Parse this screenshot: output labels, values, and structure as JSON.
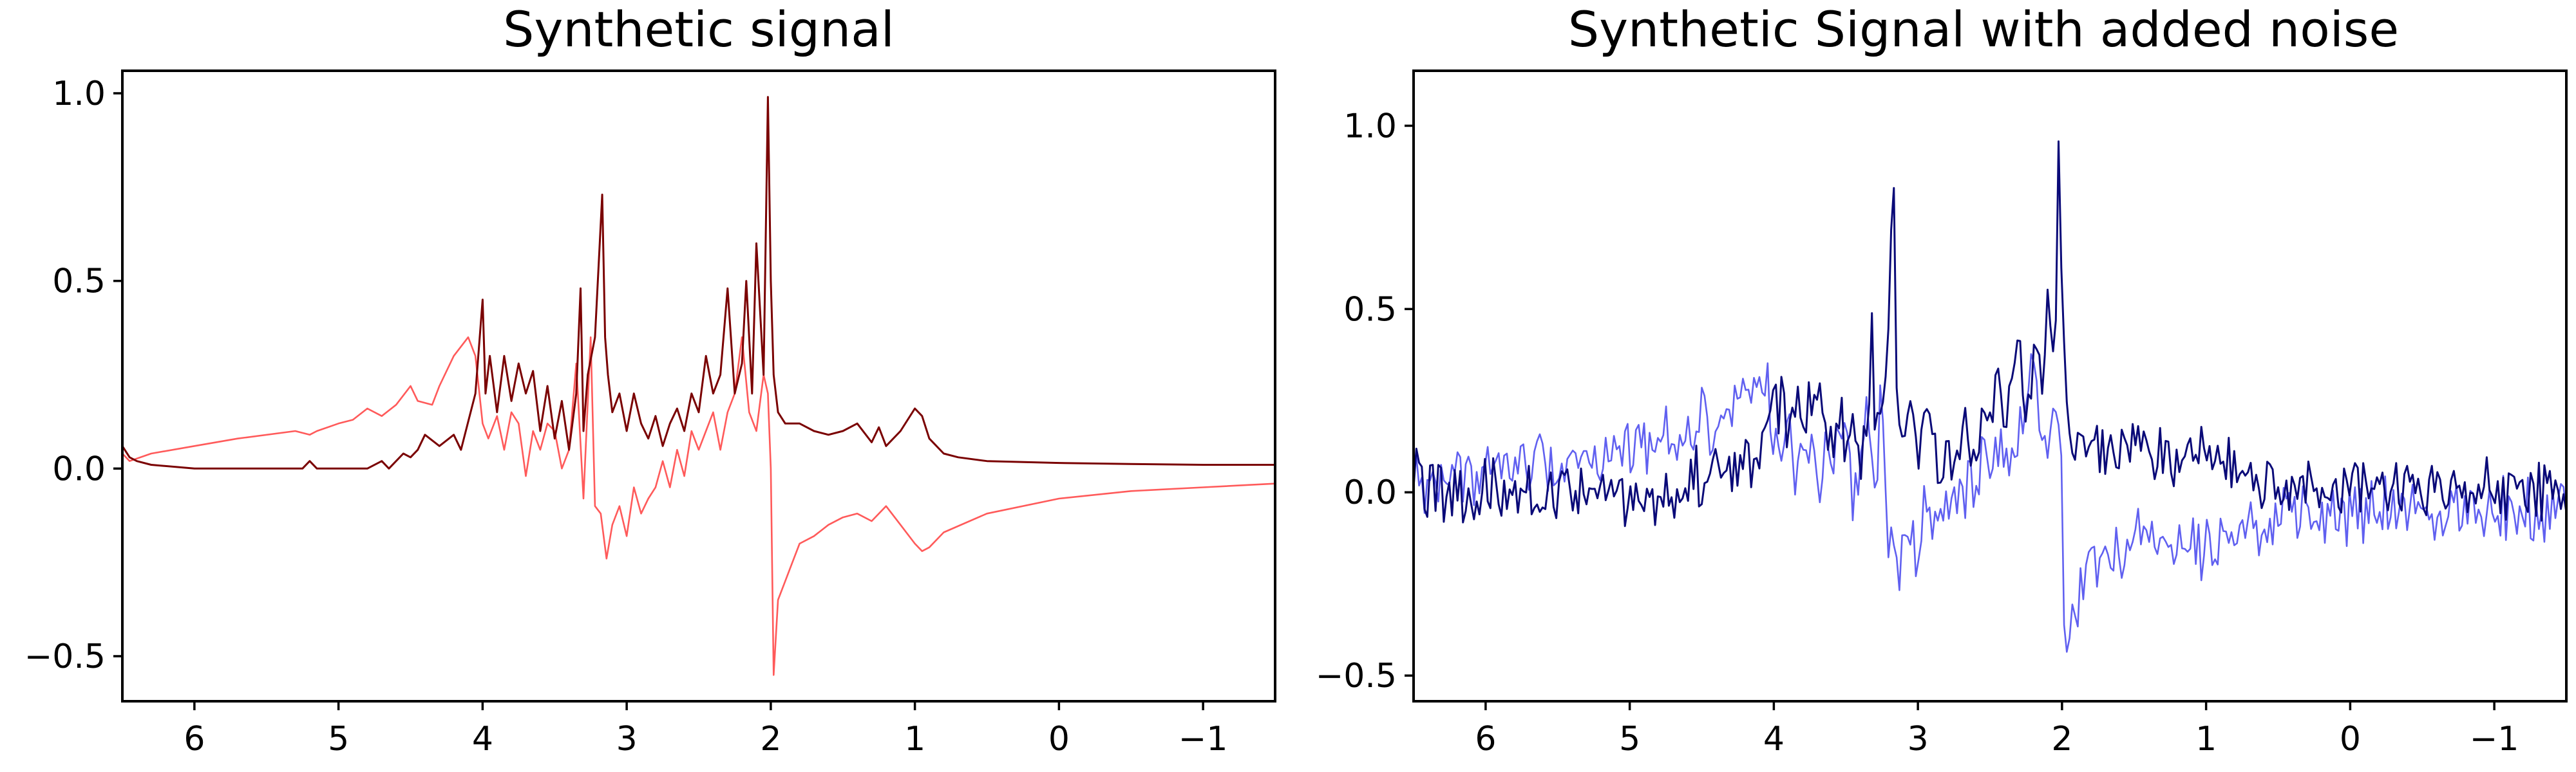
{
  "chart_data": [
    {
      "type": "line",
      "title": "Synthetic signal",
      "xlabel": "",
      "ylabel": "",
      "xlim": [
        6.5,
        -1.5
      ],
      "ylim": [
        -0.62,
        1.06
      ],
      "x_reversed": true,
      "grid": false,
      "xticks": [
        6,
        5,
        4,
        3,
        2,
        1,
        0,
        -1
      ],
      "xtick_labels": [
        "6",
        "5",
        "4",
        "3",
        "2",
        "1",
        "0",
        "−1"
      ],
      "yticks": [
        1.0,
        0.5,
        0.0,
        -0.5
      ],
      "ytick_labels": [
        "1.0",
        "0.5",
        "0.0",
        "−0.5"
      ],
      "noisy": false,
      "series": [
        {
          "color": "#ff5a5a",
          "x": [
            6.5,
            6.45,
            6.3,
            6.0,
            5.7,
            5.3,
            5.2,
            5.15,
            5.0,
            4.9,
            4.8,
            4.7,
            4.6,
            4.5,
            4.45,
            4.35,
            4.3,
            4.2,
            4.1,
            4.05,
            4.0,
            3.96,
            3.9,
            3.85,
            3.8,
            3.75,
            3.7,
            3.65,
            3.6,
            3.55,
            3.5,
            3.45,
            3.4,
            3.35,
            3.3,
            3.25,
            3.22,
            3.18,
            3.14,
            3.1,
            3.05,
            3.0,
            2.95,
            2.9,
            2.85,
            2.8,
            2.75,
            2.7,
            2.65,
            2.6,
            2.55,
            2.5,
            2.45,
            2.4,
            2.35,
            2.3,
            2.25,
            2.2,
            2.15,
            2.1,
            2.05,
            2.02,
            2.0,
            1.98,
            1.95,
            1.9,
            1.85,
            1.8,
            1.7,
            1.6,
            1.5,
            1.4,
            1.3,
            1.2,
            1.1,
            1.0,
            0.95,
            0.9,
            0.8,
            0.5,
            0.0,
            -0.5,
            -1.0,
            -1.5
          ],
          "y": [
            0.04,
            0.02,
            0.04,
            0.06,
            0.08,
            0.1,
            0.09,
            0.1,
            0.12,
            0.13,
            0.16,
            0.14,
            0.17,
            0.22,
            0.18,
            0.17,
            0.22,
            0.3,
            0.35,
            0.3,
            0.12,
            0.08,
            0.14,
            0.05,
            0.15,
            0.12,
            -0.02,
            0.1,
            0.05,
            0.12,
            0.1,
            0.0,
            0.05,
            0.28,
            -0.08,
            0.35,
            -0.1,
            -0.12,
            -0.24,
            -0.15,
            -0.1,
            -0.18,
            -0.05,
            -0.12,
            -0.08,
            -0.05,
            0.02,
            -0.05,
            0.05,
            -0.02,
            0.1,
            0.05,
            0.1,
            0.15,
            0.05,
            0.15,
            0.2,
            0.35,
            0.15,
            0.1,
            0.25,
            0.2,
            0.0,
            -0.55,
            -0.35,
            -0.3,
            -0.25,
            -0.2,
            -0.18,
            -0.15,
            -0.13,
            -0.12,
            -0.14,
            -0.1,
            -0.15,
            -0.2,
            -0.22,
            -0.21,
            -0.17,
            -0.12,
            -0.08,
            -0.06,
            -0.05,
            -0.04
          ]
        },
        {
          "color": "#7a0000",
          "x": [
            6.5,
            6.45,
            6.4,
            6.3,
            6.0,
            5.5,
            5.25,
            5.2,
            5.15,
            5.0,
            4.8,
            4.7,
            4.65,
            4.55,
            4.5,
            4.45,
            4.4,
            4.3,
            4.2,
            4.15,
            4.05,
            4.0,
            3.98,
            3.95,
            3.9,
            3.85,
            3.8,
            3.75,
            3.7,
            3.65,
            3.6,
            3.55,
            3.5,
            3.45,
            3.4,
            3.35,
            3.32,
            3.3,
            3.27,
            3.22,
            3.17,
            3.15,
            3.13,
            3.1,
            3.05,
            3.0,
            2.95,
            2.9,
            2.85,
            2.8,
            2.75,
            2.7,
            2.65,
            2.6,
            2.55,
            2.5,
            2.45,
            2.4,
            2.35,
            2.3,
            2.25,
            2.2,
            2.17,
            2.13,
            2.1,
            2.05,
            2.02,
            2.0,
            1.98,
            1.95,
            1.9,
            1.8,
            1.7,
            1.6,
            1.5,
            1.4,
            1.3,
            1.25,
            1.2,
            1.1,
            1.0,
            0.95,
            0.9,
            0.8,
            0.7,
            0.5,
            0.0,
            -0.5,
            -1.0,
            -1.5
          ],
          "y": [
            0.06,
            0.03,
            0.02,
            0.01,
            0.0,
            0.0,
            0.0,
            0.02,
            0.0,
            0.0,
            0.0,
            0.02,
            0.0,
            0.04,
            0.03,
            0.05,
            0.09,
            0.06,
            0.09,
            0.05,
            0.2,
            0.45,
            0.2,
            0.3,
            0.15,
            0.3,
            0.18,
            0.28,
            0.2,
            0.26,
            0.1,
            0.22,
            0.08,
            0.18,
            0.05,
            0.2,
            0.48,
            0.1,
            0.25,
            0.35,
            0.73,
            0.35,
            0.25,
            0.15,
            0.2,
            0.1,
            0.2,
            0.12,
            0.08,
            0.14,
            0.06,
            0.12,
            0.16,
            0.1,
            0.2,
            0.15,
            0.3,
            0.2,
            0.25,
            0.48,
            0.2,
            0.28,
            0.5,
            0.2,
            0.6,
            0.25,
            0.99,
            0.5,
            0.25,
            0.15,
            0.12,
            0.12,
            0.1,
            0.09,
            0.1,
            0.12,
            0.07,
            0.11,
            0.06,
            0.1,
            0.16,
            0.14,
            0.08,
            0.04,
            0.03,
            0.02,
            0.015,
            0.012,
            0.01,
            0.01
          ]
        }
      ]
    },
    {
      "type": "line",
      "title": "Synthetic Signal with added noise",
      "xlabel": "",
      "ylabel": "",
      "xlim": [
        6.5,
        -1.5
      ],
      "ylim": [
        -0.57,
        1.15
      ],
      "x_reversed": true,
      "grid": false,
      "xticks": [
        6,
        5,
        4,
        3,
        2,
        1,
        0,
        -1
      ],
      "xtick_labels": [
        "6",
        "5",
        "4",
        "3",
        "2",
        "1",
        "0",
        "−1"
      ],
      "yticks": [
        1.0,
        0.5,
        0.0,
        -0.5
      ],
      "ytick_labels": [
        "1.0",
        "0.5",
        "0.0",
        "−0.5"
      ],
      "noisy": true,
      "series": [
        {
          "color": "#6060f0",
          "x": [
            6.5,
            6.45,
            6.3,
            6.0,
            5.7,
            5.3,
            5.2,
            5.15,
            5.0,
            4.9,
            4.8,
            4.7,
            4.6,
            4.5,
            4.45,
            4.35,
            4.3,
            4.2,
            4.1,
            4.05,
            4.0,
            3.96,
            3.9,
            3.85,
            3.8,
            3.75,
            3.7,
            3.65,
            3.6,
            3.55,
            3.5,
            3.45,
            3.4,
            3.35,
            3.3,
            3.25,
            3.22,
            3.18,
            3.14,
            3.1,
            3.05,
            3.0,
            2.95,
            2.9,
            2.85,
            2.8,
            2.75,
            2.7,
            2.65,
            2.6,
            2.55,
            2.5,
            2.45,
            2.4,
            2.35,
            2.3,
            2.25,
            2.2,
            2.15,
            2.1,
            2.05,
            2.02,
            2.0,
            1.98,
            1.95,
            1.9,
            1.85,
            1.8,
            1.7,
            1.6,
            1.5,
            1.4,
            1.3,
            1.2,
            1.1,
            1.0,
            0.95,
            0.9,
            0.8,
            0.5,
            0.0,
            -0.5,
            -1.0,
            -1.5
          ],
          "y": [
            0.04,
            0.02,
            0.04,
            0.06,
            0.08,
            0.1,
            0.09,
            0.1,
            0.12,
            0.13,
            0.16,
            0.14,
            0.17,
            0.22,
            0.18,
            0.17,
            0.22,
            0.3,
            0.35,
            0.3,
            0.12,
            0.08,
            0.14,
            0.05,
            0.15,
            0.12,
            -0.02,
            0.1,
            0.05,
            0.12,
            0.1,
            0.0,
            0.05,
            0.28,
            -0.08,
            0.35,
            -0.1,
            -0.12,
            -0.24,
            -0.15,
            -0.1,
            -0.18,
            -0.05,
            -0.12,
            -0.08,
            -0.05,
            0.02,
            -0.05,
            0.05,
            -0.02,
            0.1,
            0.05,
            0.1,
            0.15,
            0.05,
            0.15,
            0.2,
            0.35,
            0.15,
            0.1,
            0.25,
            0.2,
            0.0,
            -0.48,
            -0.32,
            -0.28,
            -0.24,
            -0.2,
            -0.18,
            -0.15,
            -0.13,
            -0.12,
            -0.14,
            -0.1,
            -0.15,
            -0.14,
            -0.12,
            -0.1,
            -0.09,
            -0.08,
            -0.06,
            -0.05,
            -0.04,
            -0.04
          ]
        },
        {
          "color": "#0a0a78",
          "x": [
            6.5,
            6.45,
            6.4,
            6.3,
            6.0,
            5.5,
            5.25,
            5.2,
            5.15,
            5.0,
            4.8,
            4.7,
            4.65,
            4.55,
            4.5,
            4.45,
            4.4,
            4.3,
            4.2,
            4.15,
            4.05,
            4.0,
            3.98,
            3.95,
            3.9,
            3.85,
            3.8,
            3.75,
            3.7,
            3.65,
            3.6,
            3.55,
            3.5,
            3.45,
            3.4,
            3.35,
            3.32,
            3.3,
            3.27,
            3.22,
            3.17,
            3.15,
            3.13,
            3.1,
            3.05,
            3.0,
            2.95,
            2.9,
            2.85,
            2.8,
            2.75,
            2.7,
            2.65,
            2.6,
            2.55,
            2.5,
            2.45,
            2.4,
            2.35,
            2.3,
            2.25,
            2.2,
            2.17,
            2.13,
            2.1,
            2.05,
            2.02,
            2.0,
            1.98,
            1.95,
            1.9,
            1.8,
            1.7,
            1.6,
            1.5,
            1.4,
            1.3,
            1.25,
            1.2,
            1.1,
            1.0,
            0.95,
            0.9,
            0.8,
            0.7,
            0.5,
            0.0,
            -0.5,
            -1.0,
            -1.5
          ],
          "y": [
            0.06,
            0.03,
            0.02,
            0.01,
            0.0,
            0.0,
            0.0,
            0.02,
            0.0,
            0.0,
            0.0,
            0.02,
            0.0,
            0.04,
            0.03,
            0.05,
            0.09,
            0.06,
            0.09,
            0.05,
            0.2,
            0.3,
            0.2,
            0.25,
            0.15,
            0.25,
            0.18,
            0.22,
            0.2,
            0.22,
            0.1,
            0.2,
            0.12,
            0.18,
            0.1,
            0.2,
            0.45,
            0.12,
            0.25,
            0.35,
            0.86,
            0.35,
            0.25,
            0.15,
            0.2,
            0.1,
            0.2,
            0.12,
            0.08,
            0.14,
            0.06,
            0.12,
            0.16,
            0.1,
            0.2,
            0.15,
            0.3,
            0.2,
            0.25,
            0.48,
            0.2,
            0.28,
            0.5,
            0.2,
            0.6,
            0.25,
            1.07,
            0.5,
            0.25,
            0.15,
            0.12,
            0.12,
            0.1,
            0.09,
            0.1,
            0.12,
            0.07,
            0.11,
            0.06,
            0.1,
            0.14,
            0.12,
            0.08,
            0.04,
            0.03,
            0.02,
            0.015,
            0.012,
            0.01,
            0.01
          ]
        }
      ]
    }
  ]
}
